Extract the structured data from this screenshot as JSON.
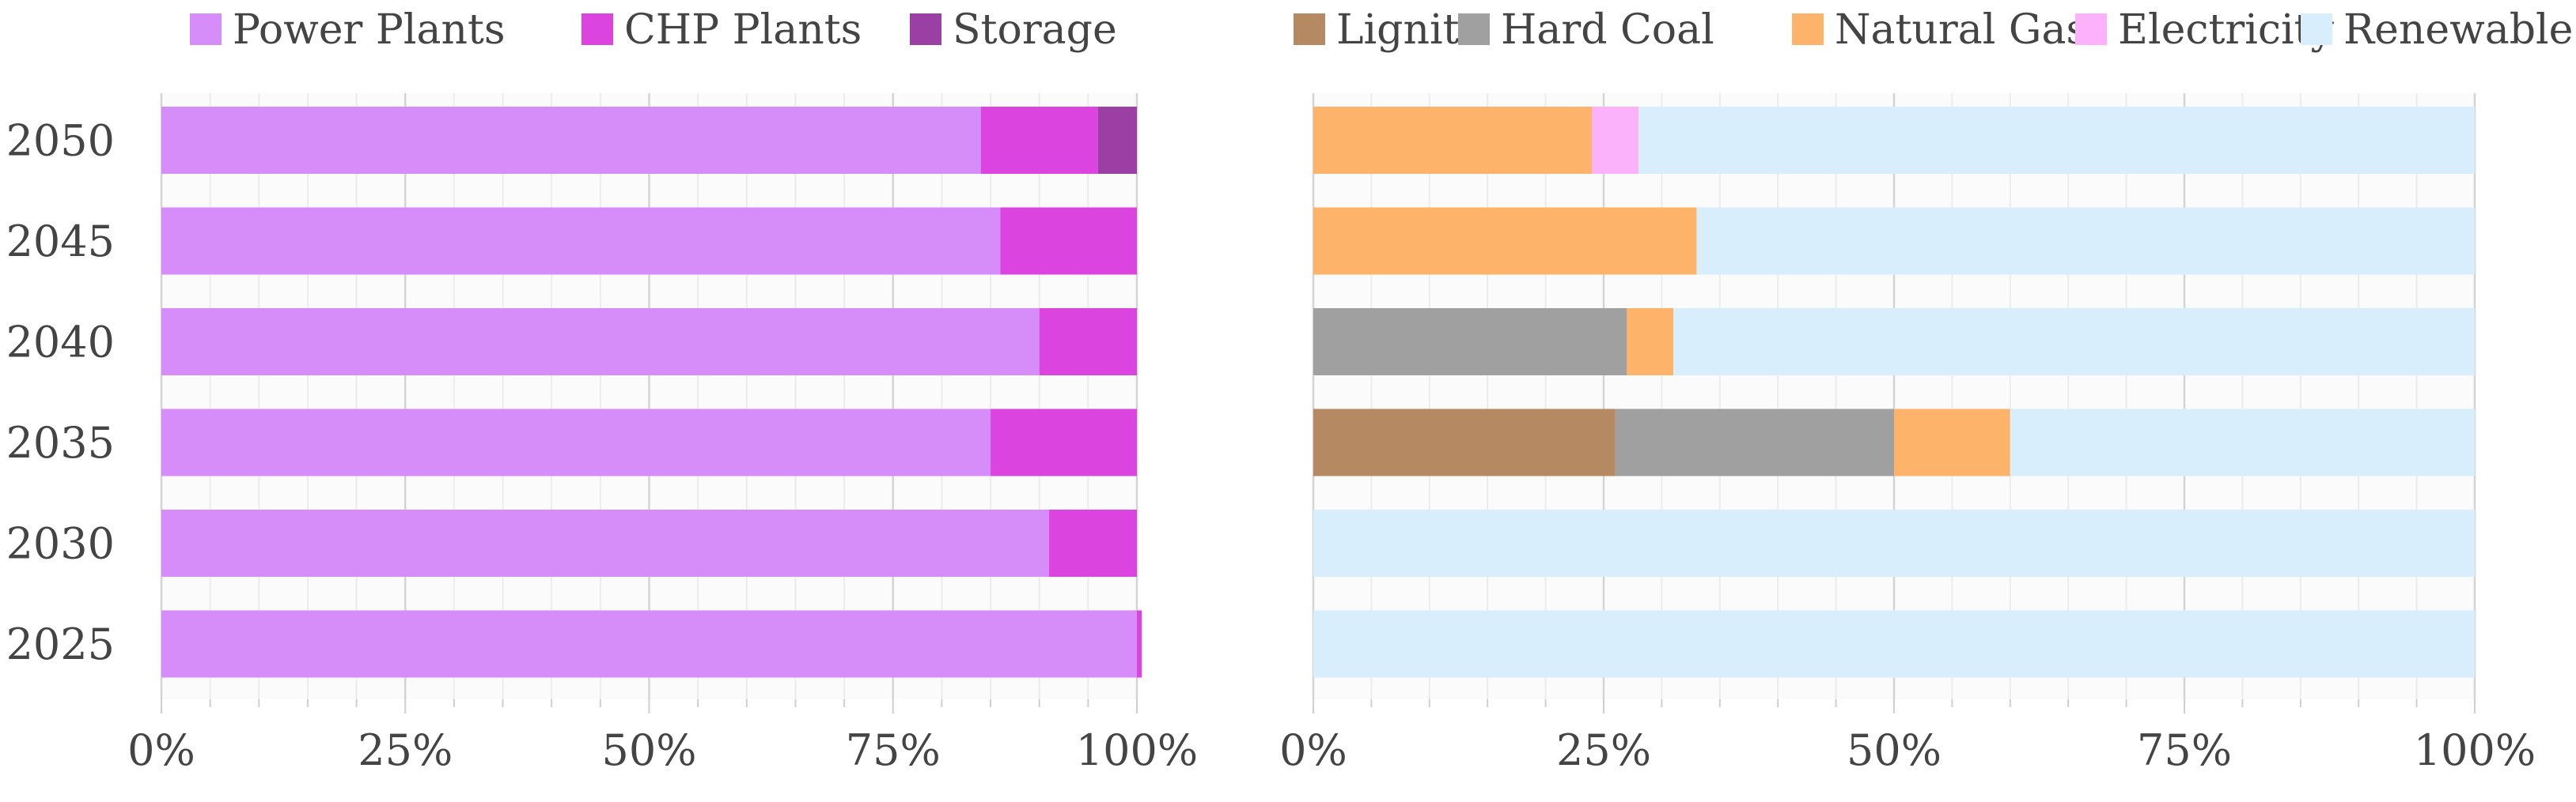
{
  "chart_data": [
    {
      "type": "bar",
      "orientation": "horizontal",
      "stacked": true,
      "normalized": true,
      "categories": [
        "2050",
        "2045",
        "2040",
        "2035",
        "2030",
        "2025"
      ],
      "series": [
        {
          "name": "Power Plants",
          "color": "#d68cf9",
          "values": [
            84,
            86,
            90,
            85,
            91,
            100
          ]
        },
        {
          "name": "CHP Plants",
          "color": "#db44de",
          "values": [
            12,
            14,
            10,
            15,
            9,
            0.5
          ]
        },
        {
          "name": "Storage",
          "color": "#9c3fa5",
          "values": [
            4,
            0,
            0,
            0,
            0,
            0
          ]
        }
      ],
      "xlim": [
        0,
        100
      ],
      "xticks": [
        "0%",
        "25%",
        "50%",
        "75%",
        "100%"
      ],
      "title": "",
      "xlabel": "",
      "ylabel": "",
      "grid": true,
      "legend": "top"
    },
    {
      "type": "bar",
      "orientation": "horizontal",
      "stacked": true,
      "normalized": true,
      "categories": [
        "2050",
        "2045",
        "2040",
        "2035",
        "2030",
        "2025"
      ],
      "series": [
        {
          "name": "Lignite",
          "color": "#b58962",
          "values": [
            0,
            0,
            0,
            26,
            0,
            0
          ]
        },
        {
          "name": "Hard Coal",
          "color": "#a0a0a0",
          "values": [
            0,
            0,
            27,
            24,
            0,
            0
          ]
        },
        {
          "name": "Natural Gas",
          "color": "#fdb46a",
          "values": [
            24,
            33,
            4,
            10,
            0,
            0
          ]
        },
        {
          "name": "Electricity",
          "color": "#fbb2fb",
          "values": [
            4,
            0,
            0,
            0,
            0,
            0
          ]
        },
        {
          "name": "Renewable",
          "color": "#d8eefc",
          "values": [
            72,
            67,
            69,
            40,
            100,
            100
          ]
        }
      ],
      "xlim": [
        0,
        100
      ],
      "xticks": [
        "0%",
        "25%",
        "50%",
        "75%",
        "100%"
      ],
      "title": "",
      "xlabel": "",
      "ylabel": "",
      "grid": true,
      "legend": "top"
    }
  ]
}
